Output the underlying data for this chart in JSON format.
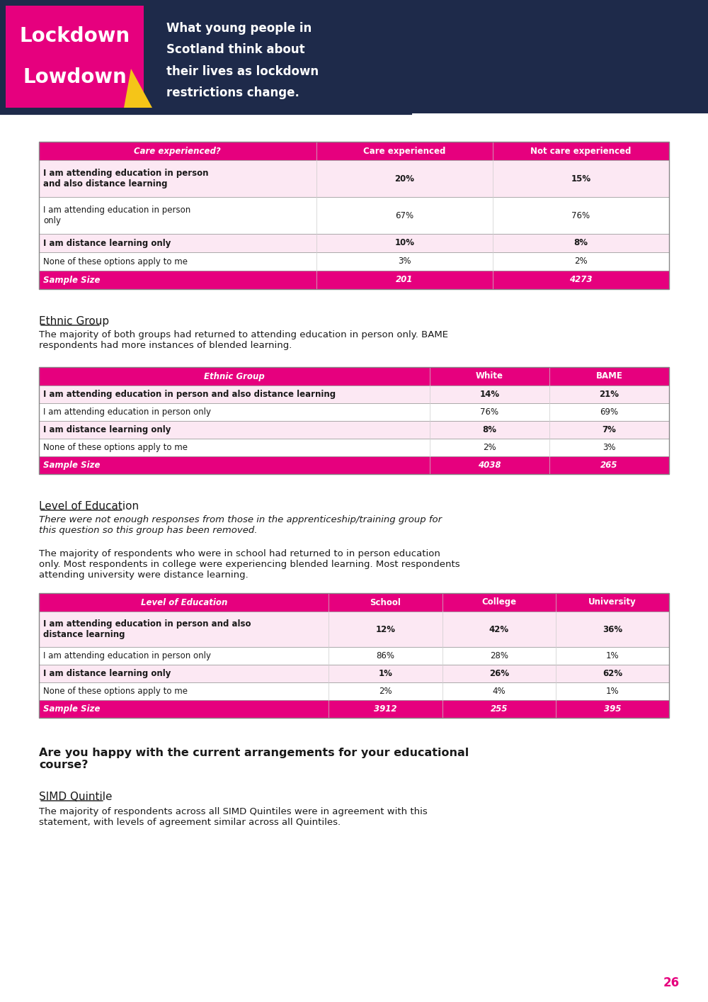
{
  "bg_color": "#ffffff",
  "header_bg": "#1e2a4a",
  "pink": "#e6007e",
  "light_pink": "#f5d0e8",
  "lighter_pink": "#fce8f3",
  "white": "#ffffff",
  "dark_text": "#1a1a1a",
  "yellow": "#f5c518",
  "table1_title": "Care experienced?",
  "table1_cols": [
    "Care experienced",
    "Not care experienced"
  ],
  "table1_rows": [
    [
      "I am attending education in person\nand also distance learning",
      "20%",
      "15%"
    ],
    [
      "I am attending education in person\nonly",
      "67%",
      "76%"
    ],
    [
      "I am distance learning only",
      "10%",
      "8%"
    ],
    [
      "None of these options apply to me",
      "3%",
      "2%"
    ],
    [
      "Sample Size",
      "201",
      "4273"
    ]
  ],
  "ethnic_heading": "Ethnic Group",
  "ethnic_para": "The majority of both groups had returned to attending education in person only. BAME\nrespondents had more instances of blended learning.",
  "table2_title": "Ethnic Group",
  "table2_cols": [
    "White",
    "BAME"
  ],
  "table2_rows": [
    [
      "I am attending education in person and also distance learning",
      "14%",
      "21%"
    ],
    [
      "I am attending education in person only",
      "76%",
      "69%"
    ],
    [
      "I am distance learning only",
      "8%",
      "7%"
    ],
    [
      "None of these options apply to me",
      "2%",
      "3%"
    ],
    [
      "Sample Size",
      "4038",
      "265"
    ]
  ],
  "edu_heading": "Level of Education",
  "edu_italic": "There were not enough responses from those in the apprenticeship/training group for\nthis question so this group has been removed.",
  "edu_para": "The majority of respondents who were in school had returned to in person education\nonly. Most respondents in college were experiencing blended learning. Most respondents\nattending university were distance learning.",
  "table3_title": "Level of Education",
  "table3_cols": [
    "School",
    "College",
    "University"
  ],
  "table3_rows": [
    [
      "I am attending education in person and also\ndistance learning",
      "12%",
      "42%",
      "36%"
    ],
    [
      "I am attending education in person only",
      "86%",
      "28%",
      "1%"
    ],
    [
      "I am distance learning only",
      "1%",
      "26%",
      "62%"
    ],
    [
      "None of these options apply to me",
      "2%",
      "4%",
      "1%"
    ],
    [
      "Sample Size",
      "3912",
      "255",
      "395"
    ]
  ],
  "happiness_heading": "Are you happy with the current arrangements for your educational\ncourse?",
  "simd_heading": "SIMD Quintile",
  "simd_para": "The majority of respondents across all SIMD Quintiles were in agreement with this\nstatement, with levels of agreement similar across all Quintiles.",
  "page_num": "26"
}
